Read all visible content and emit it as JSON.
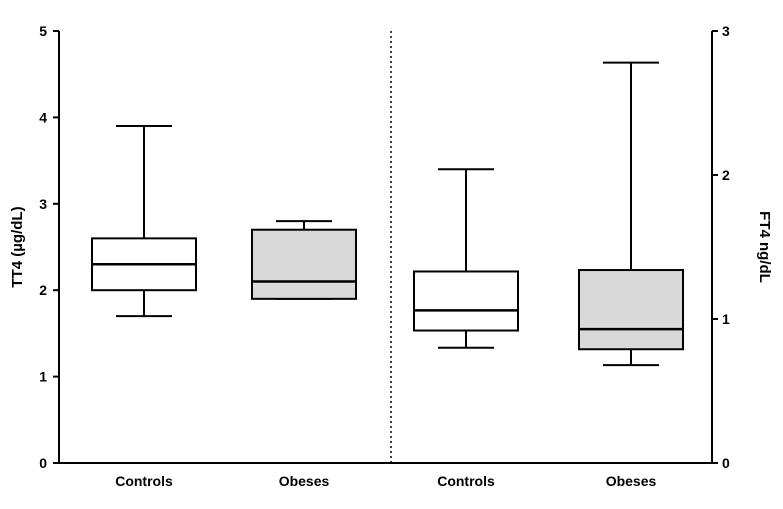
{
  "chart_data": {
    "type": "boxplot",
    "categories": [
      "Controls",
      "Obeses",
      "Controls",
      "Obeses"
    ],
    "left_axis": {
      "label": "TT4 (µg/dL)",
      "ylim": [
        0,
        5
      ],
      "ticks": [
        "0",
        "1",
        "2",
        "3",
        "4",
        "5"
      ]
    },
    "right_axis": {
      "label": "FT4 ng/dL",
      "ylim": [
        0,
        3
      ],
      "ticks": [
        "0",
        "1",
        "2",
        "3"
      ]
    },
    "divider": "dotted vertical line between the TT4 group and the FT4 group",
    "grid": false,
    "legend": "none",
    "boxes": [
      {
        "category": "Controls",
        "axis": "left",
        "fill": "#ffffff",
        "min": 1.7,
        "q1": 2.0,
        "median": 2.3,
        "q3": 2.6,
        "max": 3.9
      },
      {
        "category": "Obeses",
        "axis": "left",
        "fill": "#d9d9d9",
        "min": 1.9,
        "q1": 1.9,
        "median": 2.1,
        "q3": 2.7,
        "max": 2.8
      },
      {
        "category": "Controls",
        "axis": "right",
        "fill": "#ffffff",
        "min": 0.8,
        "q1": 0.92,
        "median": 1.06,
        "q3": 1.33,
        "max": 2.04
      },
      {
        "category": "Obeses",
        "axis": "right",
        "fill": "#d9d9d9",
        "min": 0.68,
        "q1": 0.79,
        "median": 0.93,
        "q3": 1.34,
        "max": 2.78
      }
    ]
  }
}
